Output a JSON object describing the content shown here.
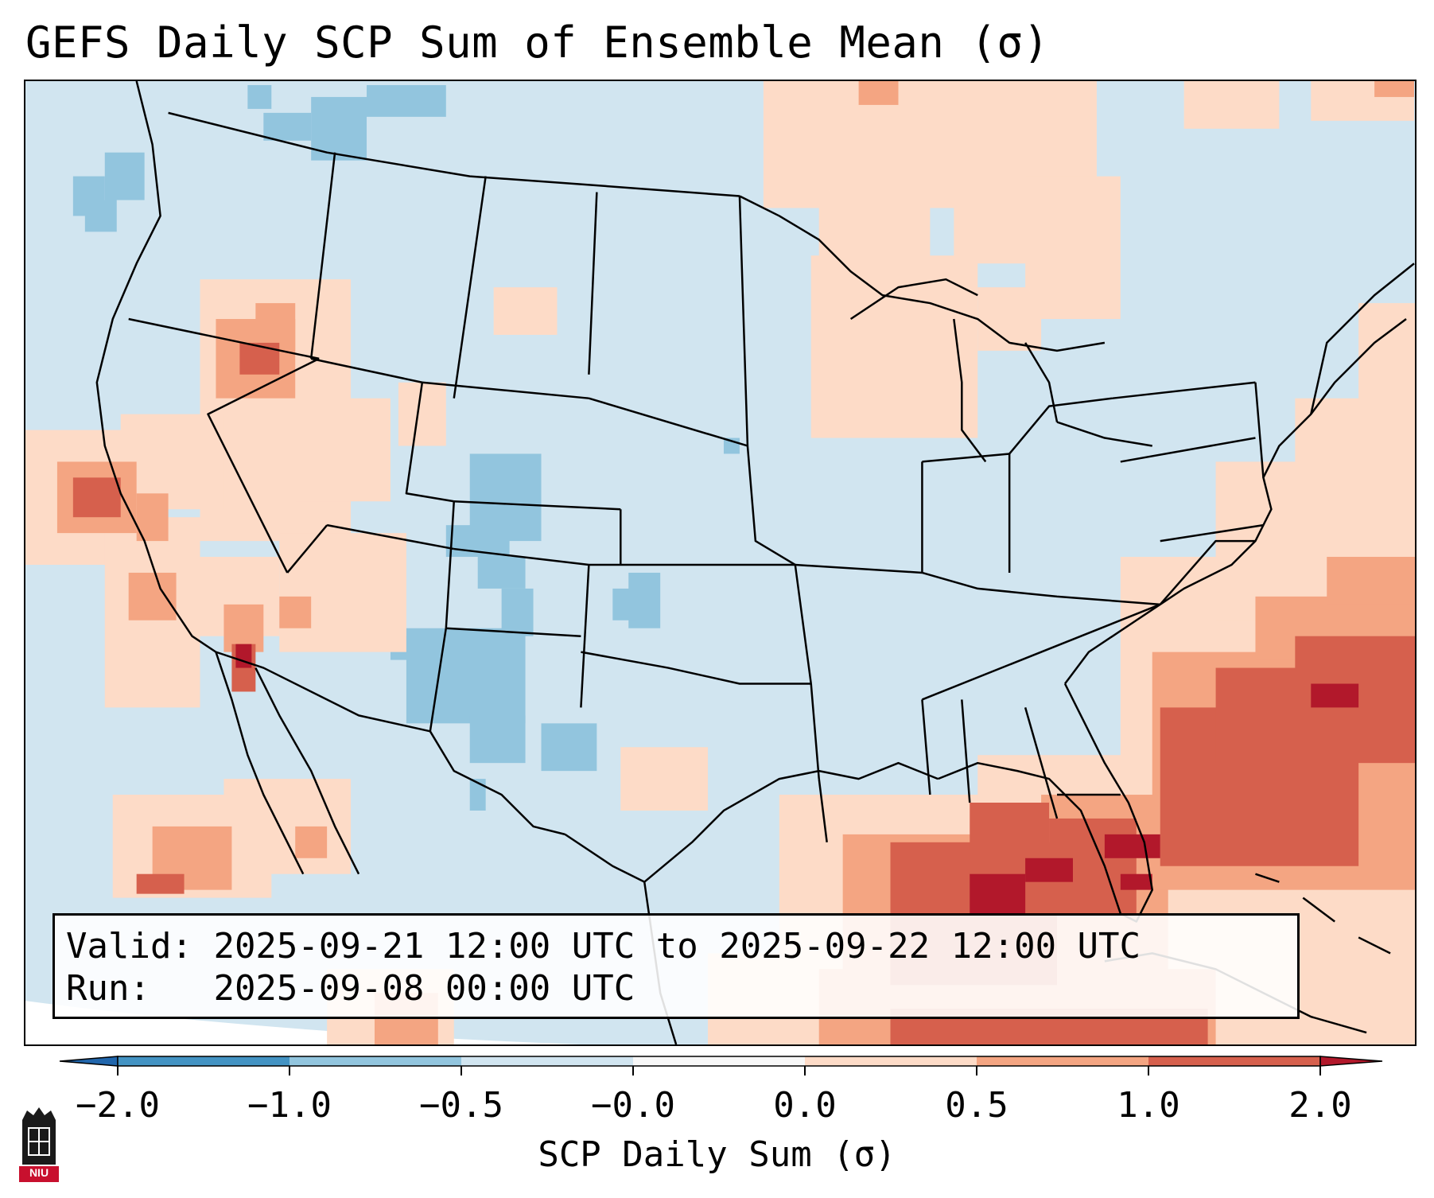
{
  "title": "GEFS Daily SCP Sum of Ensemble Mean (σ)",
  "info": {
    "valid_label": "Valid:",
    "valid_value": "2025-09-21 12:00 UTC to 2025-09-22 12:00 UTC",
    "run_label": "Run:",
    "run_value": "2025-09-08 00:00 UTC"
  },
  "colorbar": {
    "label": "SCP Daily Sum (σ)",
    "ticks": [
      "−2.0",
      "−1.0",
      "−0.5",
      "−0.0",
      "0.0",
      "0.5",
      "1.0",
      "2.0"
    ],
    "colors": [
      "#2166ac",
      "#4393c3",
      "#92c5de",
      "#d1e5f0",
      "#f7f7f7",
      "#fddbc7",
      "#f4a582",
      "#d6604d",
      "#b2182b"
    ]
  },
  "logo": {
    "text": "NIU",
    "name": "niu-logo"
  },
  "map": {
    "background_color": "#d1e5f0",
    "outline_color": "#000000"
  }
}
